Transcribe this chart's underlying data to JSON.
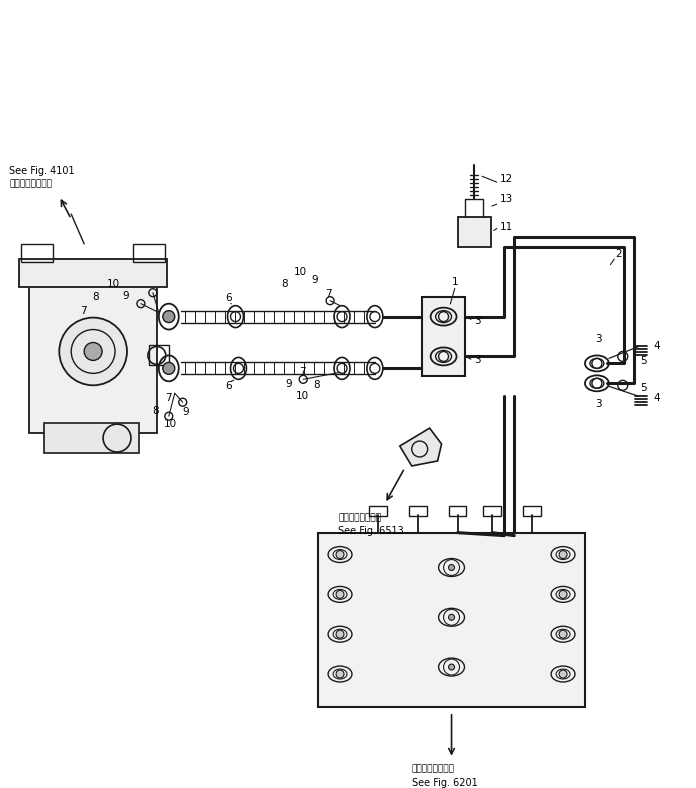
{
  "bg_color": "#ffffff",
  "lc": "#1a1a1a",
  "fig_width": 6.96,
  "fig_height": 7.88,
  "dpi": 100,
  "label_fig4101_jp": "第４１０１図参照",
  "label_fig4101_en": "See Fig. 4101",
  "label_fig6513_jp": "第６５１３図参照",
  "label_fig6513_en": "See Fig. 6513",
  "label_fig6201_jp": "第６２０１図参照",
  "label_fig6201_en": "See Fig. 6201"
}
